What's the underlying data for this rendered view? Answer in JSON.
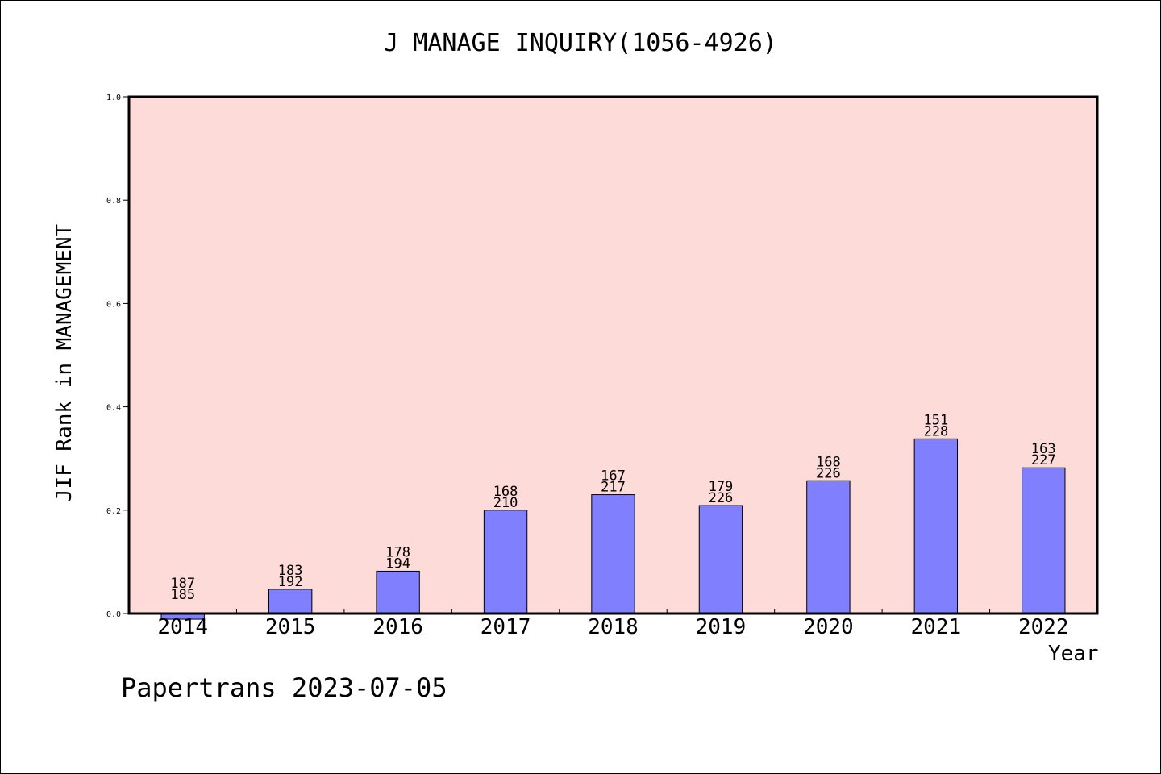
{
  "chart_data": {
    "type": "bar",
    "title": "J MANAGE INQUIRY(1056-4926)",
    "xlabel": "Year",
    "ylabel": "JIF Rank in MANAGEMENT",
    "categories": [
      "2014",
      "2015",
      "2016",
      "2017",
      "2018",
      "2019",
      "2020",
      "2021",
      "2022"
    ],
    "values": [
      -0.011,
      0.047,
      0.082,
      0.2,
      0.23,
      0.209,
      0.257,
      0.338,
      0.282
    ],
    "rank_labels": [
      [
        "187",
        "185"
      ],
      [
        "183",
        "192"
      ],
      [
        "178",
        "194"
      ],
      [
        "168",
        "210"
      ],
      [
        "167",
        "217"
      ],
      [
        "179",
        "226"
      ],
      [
        "168",
        "226"
      ],
      [
        "151",
        "228"
      ],
      [
        "163",
        "227"
      ]
    ],
    "ylim": [
      0.0,
      1.0
    ],
    "yticks": [
      "0.0",
      "0.2",
      "0.4",
      "0.6",
      "0.8",
      "1.0"
    ],
    "grid": false,
    "legend": "none",
    "colors": {
      "plot_background": "#fddbd8",
      "bar_fill": "#8080ff",
      "bar_stroke": "#000000",
      "axis": "#000000"
    }
  },
  "footer": "Papertrans 2023-07-05"
}
